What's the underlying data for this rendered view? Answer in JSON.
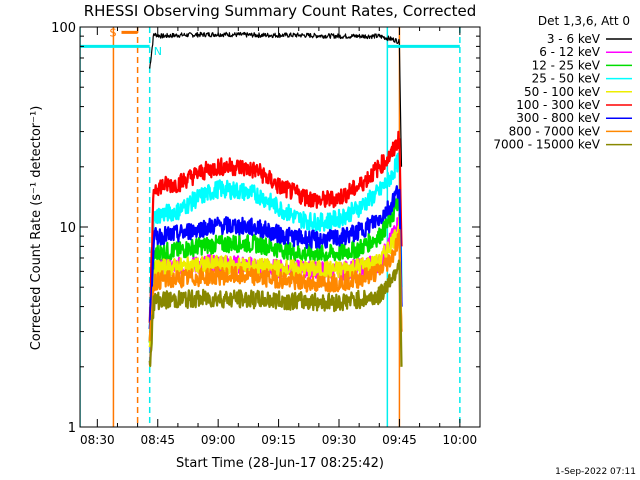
{
  "chart_data": {
    "type": "line",
    "title": "RHESSI Observing Summary Count Rates, Corrected",
    "xlabel": "Start Time (28-Jun-17 08:25:42)",
    "ylabel": "Corrected Count Rate (s⁻¹ detector⁻¹)",
    "y_scale": "log",
    "ylim": [
      1,
      100
    ],
    "xlim": [
      "08:25:42",
      "10:05:00"
    ],
    "x_ticks": [
      "08:30",
      "08:45",
      "09:00",
      "09:15",
      "09:30",
      "09:45",
      "10:00"
    ],
    "y_ticks": [
      "1",
      "10",
      "100"
    ],
    "legend": {
      "header": "Det 1,3,6, Att 0",
      "placement": "outside-right"
    },
    "series": [
      {
        "name": "3 - 6 keV",
        "color": "#000000",
        "t": [
          "08:43",
          "08:44",
          "08:46",
          "08:50",
          "09:00",
          "09:10",
          "09:20",
          "09:30",
          "09:40",
          "09:44",
          "09:45",
          "09:45:30"
        ],
        "values": [
          62,
          92,
          90,
          91,
          92,
          91,
          91,
          90,
          90,
          86,
          84,
          20
        ]
      },
      {
        "name": "6 - 12 keV",
        "color": "#ff00ff",
        "t": [
          "08:43",
          "08:44",
          "08:45",
          "09:00",
          "09:15",
          "09:30",
          "09:40",
          "09:44",
          "09:45",
          "09:45:30"
        ],
        "values": [
          2,
          5.5,
          6.2,
          6.6,
          6.2,
          6.0,
          6.6,
          9.5,
          11,
          3
        ]
      },
      {
        "name": "12 - 25 keV",
        "color": "#00dd00",
        "t": [
          "08:43",
          "08:44",
          "08:45",
          "08:50",
          "08:55",
          "09:00",
          "09:05",
          "09:10",
          "09:15",
          "09:20",
          "09:25",
          "09:30",
          "09:35",
          "09:40",
          "09:43",
          "09:45",
          "09:45:30"
        ],
        "values": [
          2.5,
          7,
          7.5,
          7.6,
          8.0,
          8.2,
          8.3,
          8.2,
          7.8,
          7.4,
          7.3,
          7.4,
          7.8,
          9,
          11,
          14,
          4
        ]
      },
      {
        "name": "25 - 50 keV",
        "color": "#00ffff",
        "t": [
          "08:43",
          "08:44",
          "08:45",
          "08:50",
          "08:55",
          "09:00",
          "09:05",
          "09:10",
          "09:15",
          "09:20",
          "09:25",
          "09:30",
          "09:35",
          "09:40",
          "09:43",
          "09:45",
          "09:45:30"
        ],
        "values": [
          3,
          11,
          11.5,
          12,
          14,
          15.5,
          15.2,
          14.5,
          12.5,
          11,
          10.5,
          11,
          12.5,
          15,
          18,
          22,
          5
        ]
      },
      {
        "name": "50 - 100 keV",
        "color": "#eeee00",
        "t": [
          "08:43",
          "08:44",
          "08:45",
          "09:00",
          "09:15",
          "09:30",
          "09:40",
          "09:44",
          "09:45",
          "09:45:30"
        ],
        "values": [
          2.5,
          6,
          6.2,
          6.5,
          6.2,
          6.1,
          6.6,
          9,
          10.5,
          3
        ]
      },
      {
        "name": "100 - 300 keV",
        "color": "#ff0000",
        "t": [
          "08:43",
          "08:44",
          "08:45",
          "08:50",
          "08:55",
          "09:00",
          "09:05",
          "09:10",
          "09:15",
          "09:20",
          "09:25",
          "09:30",
          "09:35",
          "09:40",
          "09:43",
          "09:45",
          "09:45:30"
        ],
        "values": [
          3,
          15.5,
          16,
          16.5,
          18.5,
          20,
          20,
          19,
          16,
          14.5,
          13.5,
          14,
          16,
          20,
          23,
          28,
          8
        ]
      },
      {
        "name": "300 - 800 keV",
        "color": "#0000ff",
        "t": [
          "08:43",
          "08:44",
          "08:45",
          "08:50",
          "08:55",
          "09:00",
          "09:05",
          "09:10",
          "09:15",
          "09:20",
          "09:25",
          "09:30",
          "09:35",
          "09:40",
          "09:43",
          "09:45",
          "09:45:30"
        ],
        "values": [
          3,
          8.8,
          9,
          9.2,
          9.8,
          10.2,
          10.1,
          9.9,
          9.2,
          8.8,
          8.6,
          8.8,
          9.5,
          11,
          13,
          16,
          4
        ]
      },
      {
        "name": "800 - 7000 keV",
        "color": "#ff8800",
        "t": [
          "08:43",
          "08:44",
          "08:45",
          "08:50",
          "08:55",
          "09:00",
          "09:05",
          "09:10",
          "09:15",
          "09:20",
          "09:25",
          "09:30",
          "09:35",
          "09:40",
          "09:43",
          "09:45",
          "09:45:30"
        ],
        "values": [
          2.5,
          5.3,
          5.4,
          5.5,
          5.6,
          5.7,
          5.7,
          5.6,
          5.5,
          5.3,
          5.2,
          5.3,
          5.5,
          6.0,
          7.0,
          9.0,
          3
        ]
      },
      {
        "name": "7000 - 15000 keV",
        "color": "#888800",
        "t": [
          "08:43",
          "08:44",
          "08:45",
          "09:00",
          "09:15",
          "09:30",
          "09:40",
          "09:44",
          "09:45",
          "09:45:30"
        ],
        "values": [
          2,
          4.2,
          4.3,
          4.4,
          4.3,
          4.2,
          4.5,
          6,
          7,
          2
        ]
      }
    ],
    "annotations": [
      {
        "label": "S",
        "color": "#ff7700",
        "span": [
          "08:36",
          "08:40"
        ],
        "level": 94
      },
      {
        "label": "N",
        "color": "#00eeee",
        "span": [
          "08:25:42",
          "08:43"
        ],
        "level": 80
      },
      {
        "label": "",
        "color": "#00eeee",
        "span": [
          "09:42",
          "10:00"
        ],
        "level": 80
      }
    ],
    "vertical_markers": [
      {
        "t": "08:25:42",
        "color": "#00eeee",
        "style": "solid"
      },
      {
        "t": "08:34",
        "color": "#ff7700",
        "style": "solid"
      },
      {
        "t": "08:40",
        "color": "#ff7700",
        "style": "dashed"
      },
      {
        "t": "08:43",
        "color": "#00eeee",
        "style": "dashed"
      },
      {
        "t": "09:42",
        "color": "#00eeee",
        "style": "solid"
      },
      {
        "t": "09:45",
        "color": "#ff7700",
        "style": "solid"
      },
      {
        "t": "10:00",
        "color": "#00eeee",
        "style": "dashed"
      }
    ]
  },
  "footer": {
    "timestamp": "1-Sep-2022 07:11"
  }
}
